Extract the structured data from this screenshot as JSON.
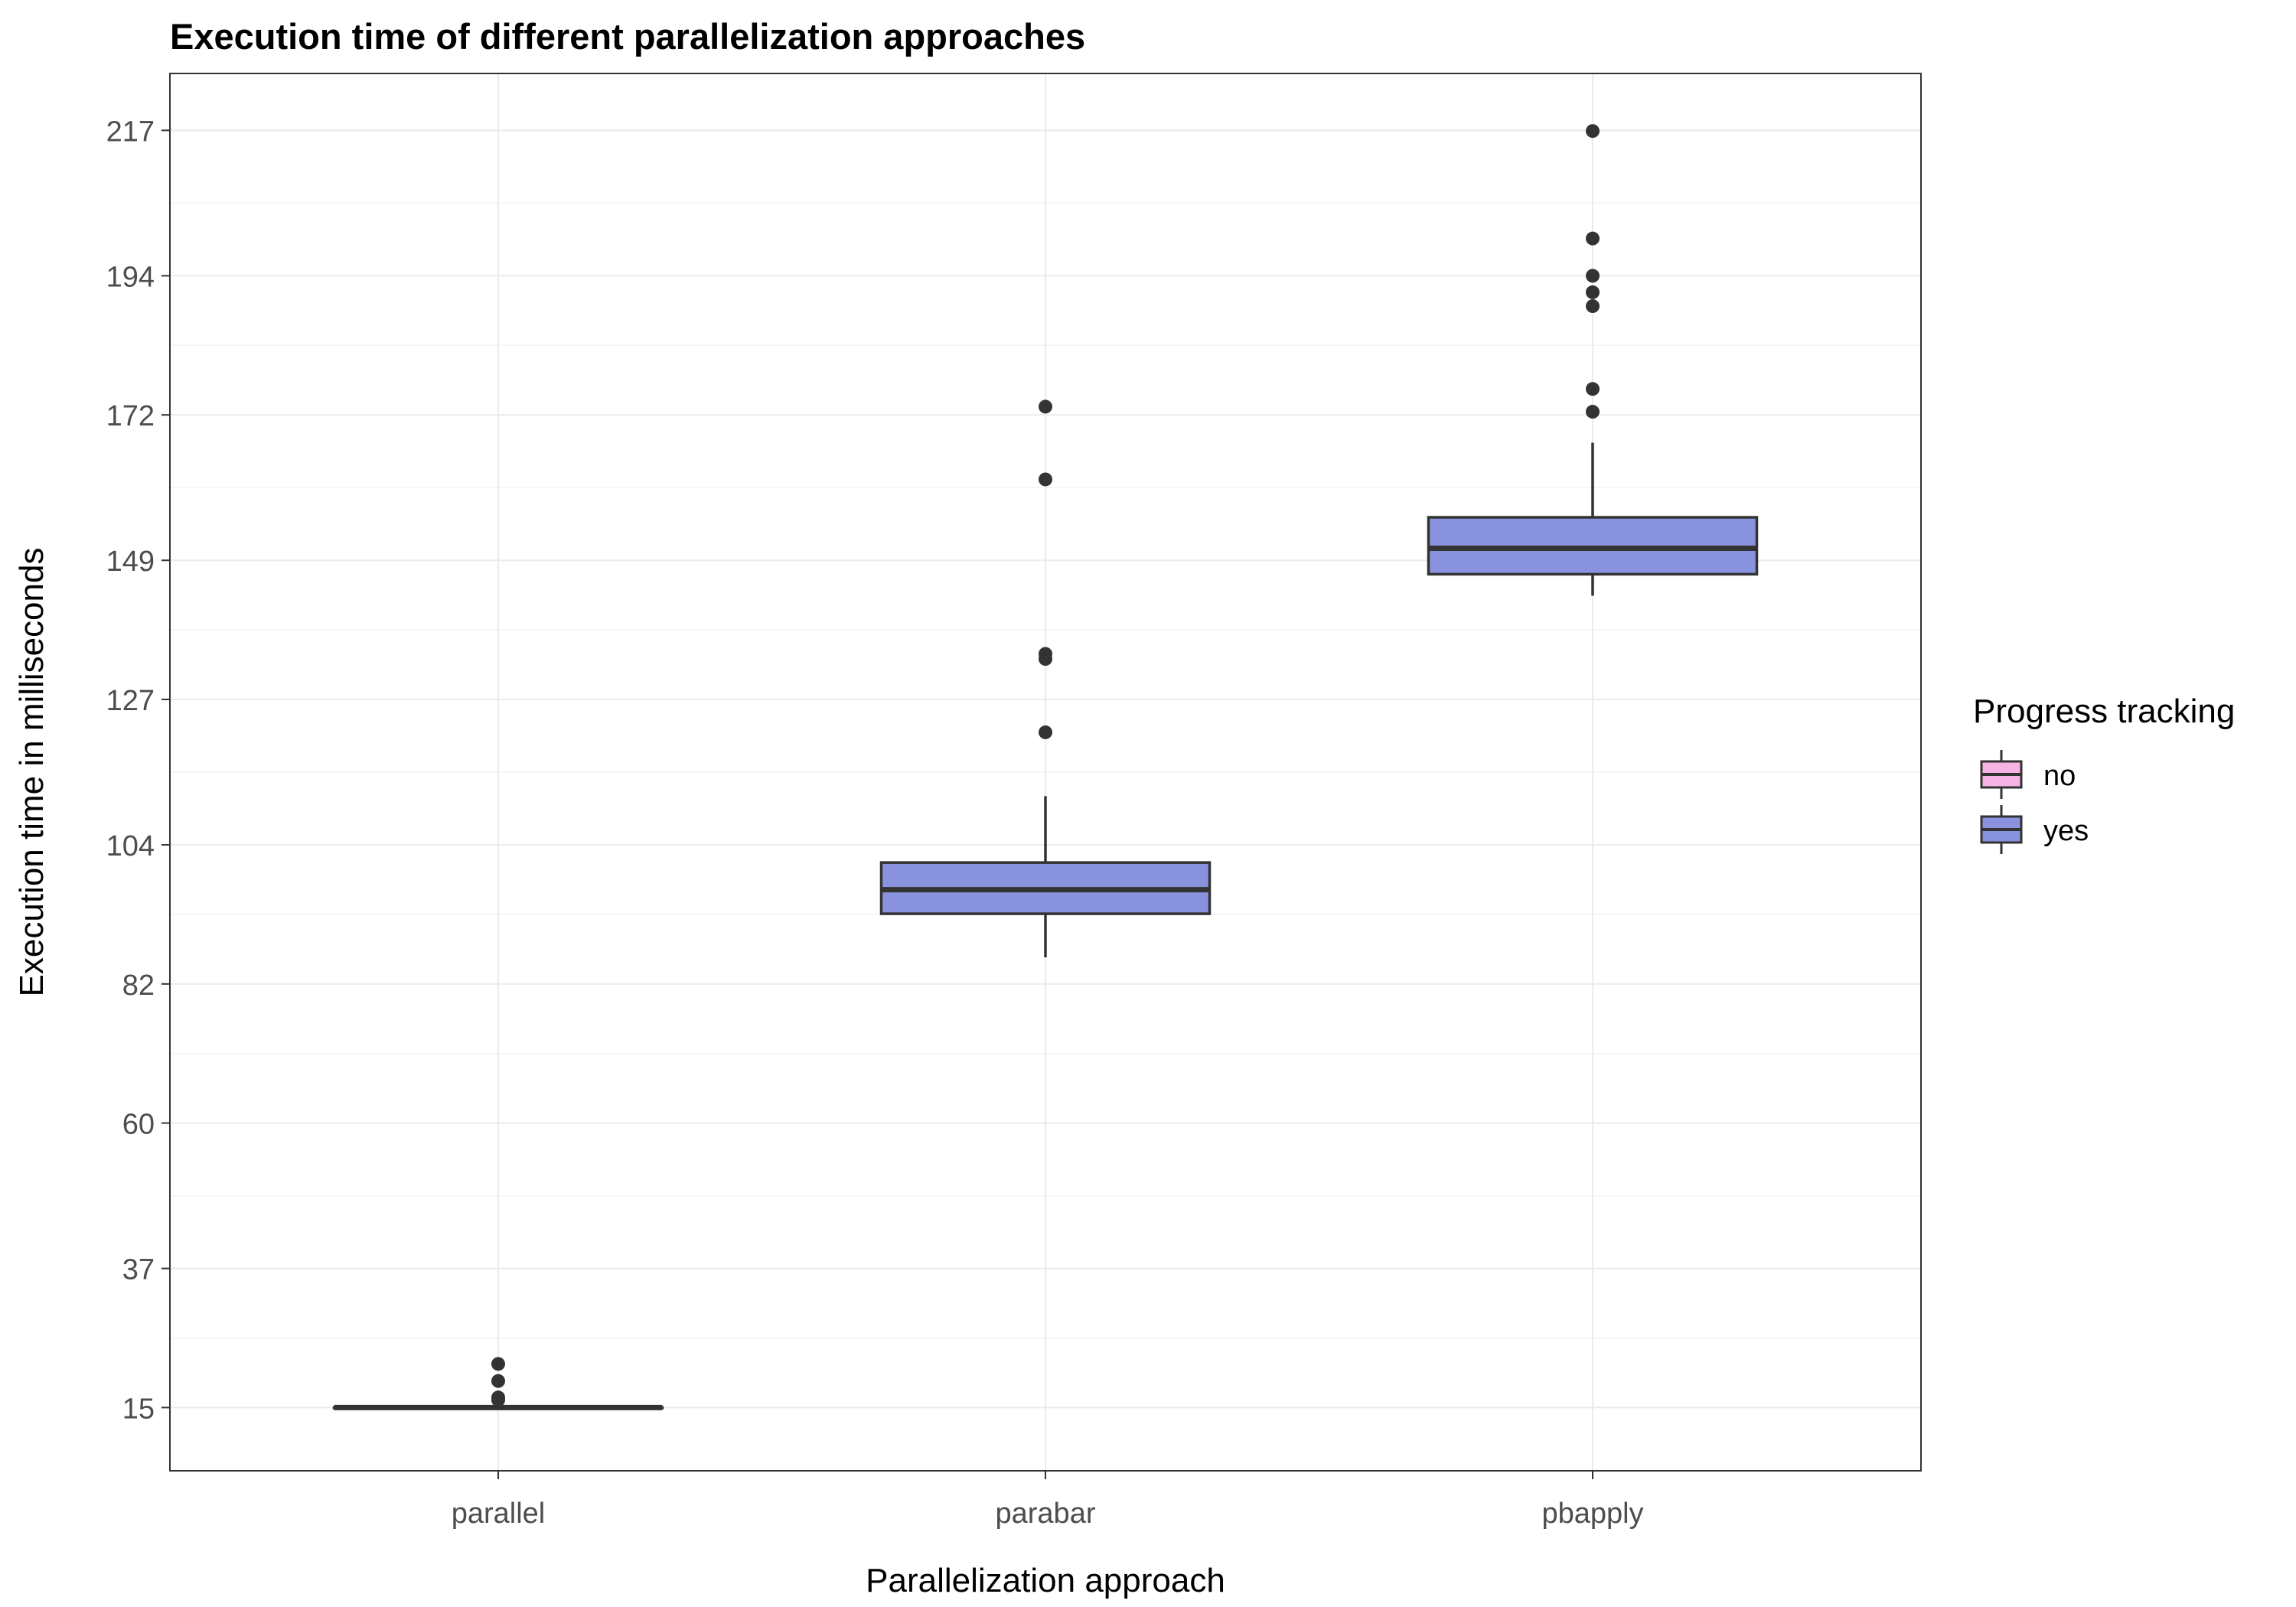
{
  "chart_data": {
    "type": "box",
    "title": "Execution time of different parallelization approaches",
    "xlabel": "Parallelization approach",
    "ylabel": "Execution time in milliseconds",
    "categories": [
      "parallel",
      "parabar",
      "pbapply"
    ],
    "y_ticks": [
      15,
      37,
      60,
      82,
      104,
      127,
      149,
      172,
      194,
      217
    ],
    "ylim": [
      5,
      226
    ],
    "grid": true,
    "legend": {
      "title": "Progress tracking",
      "position": "right",
      "entries": [
        {
          "label": "no",
          "color": "#f7b3e3"
        },
        {
          "label": "yes",
          "color": "#8993dd"
        }
      ]
    },
    "series": [
      {
        "name": "yes",
        "color": "#8993dd",
        "boxes": [
          {
            "category": "parallel",
            "whisker_low": 15,
            "q1": 15,
            "median": 15,
            "q3": 15,
            "whisker_high": 15,
            "outliers": [
              16.2,
              16.6,
              19.2,
              21.9
            ]
          },
          {
            "category": "parabar",
            "whisker_low": 86.2,
            "q1": 93.1,
            "median": 96.9,
            "q3": 101.2,
            "whisker_high": 111.7,
            "outliers": [
              121.8,
              133.4,
              134.2,
              161.8,
              173.3
            ]
          },
          {
            "category": "pbapply",
            "whisker_low": 143.4,
            "q1": 146.8,
            "median": 150.9,
            "q3": 155.8,
            "whisker_high": 167.6,
            "outliers": [
              172.5,
              176.1,
              189.2,
              191.4,
              194,
              199.9,
              216.9
            ]
          }
        ]
      }
    ]
  }
}
